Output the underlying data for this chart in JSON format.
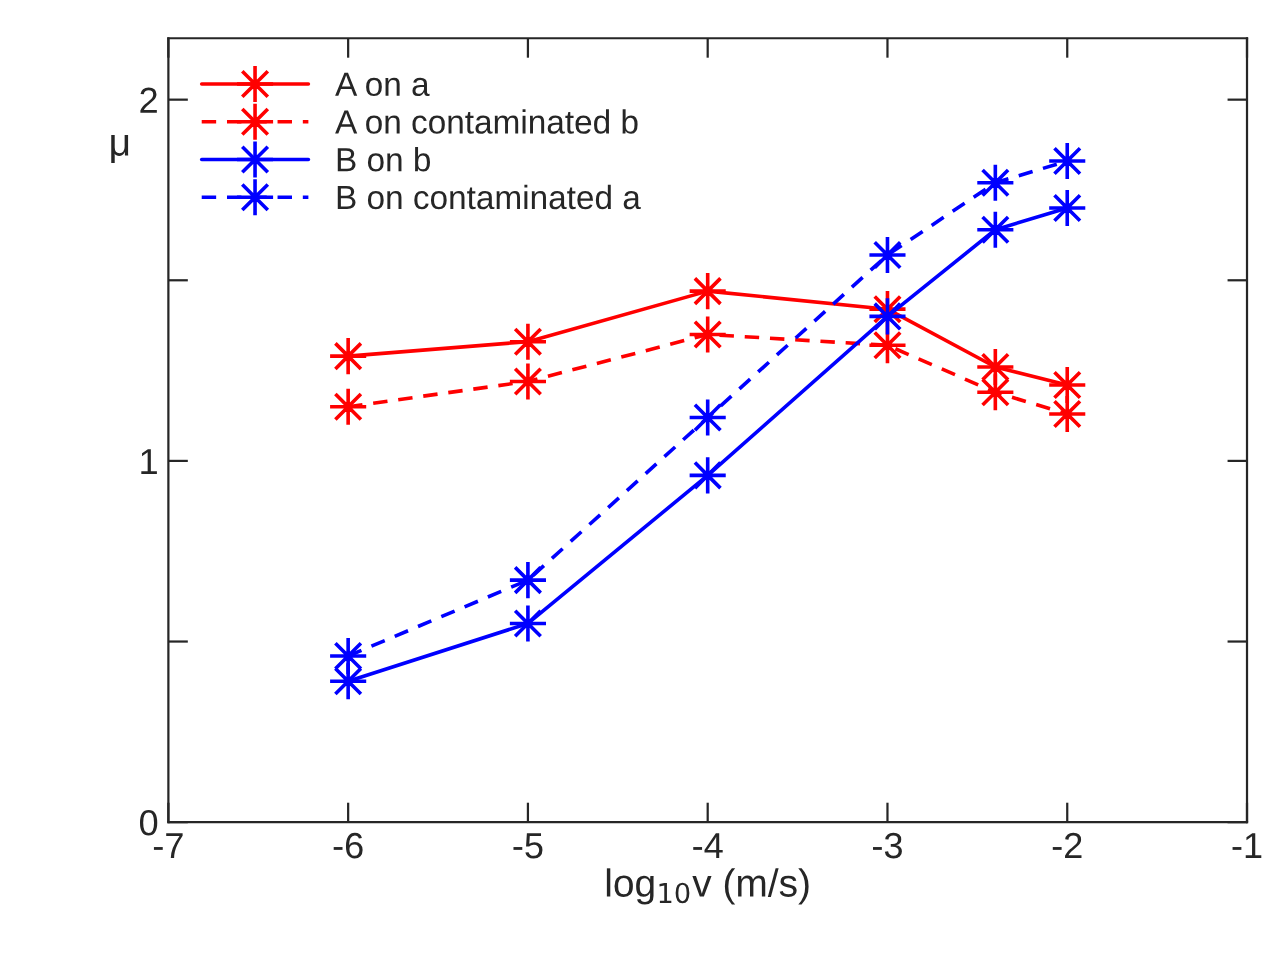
{
  "chart_data": {
    "type": "line",
    "xlabel": "log$_{10}$v (m/s)",
    "ylabel": "μ",
    "xlim": [
      -7,
      -1
    ],
    "xticks": [
      -7,
      -6,
      -5,
      -4,
      -3,
      -2,
      -1
    ],
    "ylim": [
      0,
      2.17
    ],
    "yticks": [
      0,
      {
        "value": 0.5,
        "label": null
      },
      1,
      {
        "value": 1.5,
        "label": null
      },
      2
    ],
    "x": [
      -6,
      -5,
      -4,
      -3,
      -2.4,
      -2
    ],
    "marker": "star",
    "grid": false,
    "legend": "top left",
    "series": [
      {
        "name": "A on a",
        "color": "#ff0000",
        "line_style": "solid",
        "values": [
          1.29,
          1.33,
          1.47,
          1.42,
          1.26,
          1.21
        ]
      },
      {
        "name": "A on contaminated b",
        "color": "#ff0000",
        "line_style": "dashed",
        "values": [
          1.15,
          1.22,
          1.35,
          1.32,
          1.19,
          1.13
        ]
      },
      {
        "name": "B on b",
        "color": "#0000ff",
        "line_style": "solid",
        "values": [
          0.39,
          0.55,
          0.96,
          1.4,
          1.64,
          1.7
        ]
      },
      {
        "name": "B on contaminated a",
        "color": "#0000ff",
        "line_style": "dashed",
        "values": [
          0.46,
          0.67,
          1.12,
          1.57,
          1.77,
          1.83
        ]
      }
    ]
  }
}
